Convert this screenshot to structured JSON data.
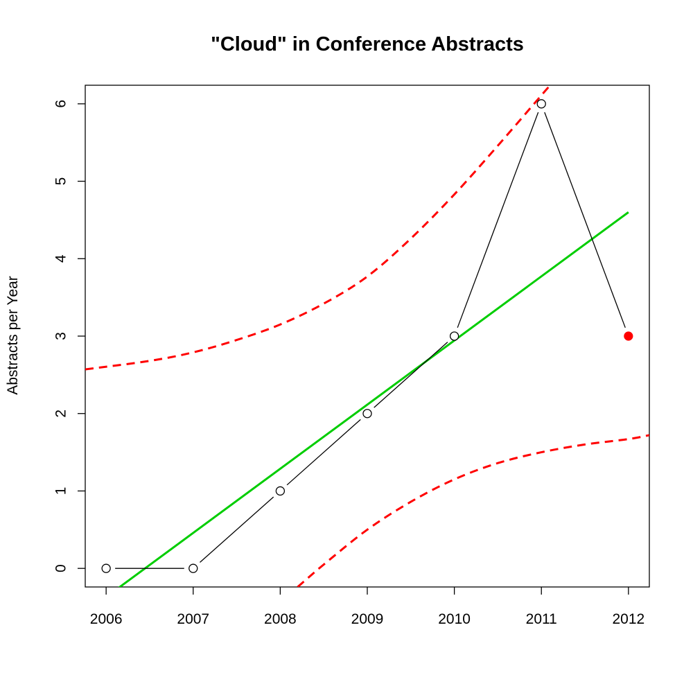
{
  "chart_data": {
    "type": "line",
    "title": "\"Cloud\" in Conference Abstracts",
    "xlabel": "",
    "ylabel": "Abstracts per Year",
    "x_ticks": [
      2006,
      2007,
      2008,
      2009,
      2010,
      2011,
      2012
    ],
    "y_ticks": [
      0,
      1,
      2,
      3,
      4,
      5,
      6
    ],
    "xlim": [
      2005.76,
      2012.24
    ],
    "ylim": [
      -0.24,
      6.24
    ],
    "grid": false,
    "legend": "none",
    "series": [
      {
        "kind": "observed",
        "x": [
          2006,
          2007,
          2008,
          2009,
          2010,
          2011,
          2012
        ],
        "y": [
          0,
          0,
          1,
          2,
          3,
          6,
          3
        ],
        "marker": "open-circle",
        "color": "#000000",
        "highlight_last": {
          "x": 2012,
          "y": 3,
          "color": "#ff0000",
          "marker": "filled-circle"
        }
      },
      {
        "kind": "linear-fit",
        "x": [
          2006,
          2012
        ],
        "y": [
          -0.37,
          4.6
        ],
        "color": "#00cd00",
        "style": "solid"
      },
      {
        "kind": "upper-band",
        "x": [
          2005.76,
          2006.5,
          2007,
          2007.5,
          2008,
          2008.5,
          2009,
          2009.5,
          2010,
          2010.5,
          2011,
          2011.1
        ],
        "y": [
          2.57,
          2.68,
          2.79,
          2.95,
          3.15,
          3.42,
          3.77,
          4.26,
          4.83,
          5.46,
          6.11,
          6.24
        ],
        "color": "#ff0000",
        "style": "dashed"
      },
      {
        "kind": "lower-band",
        "x": [
          2008.2,
          2008.5,
          2009,
          2009.5,
          2010,
          2010.5,
          2011,
          2011.5,
          2012,
          2012.24
        ],
        "y": [
          -0.24,
          0.05,
          0.5,
          0.86,
          1.15,
          1.36,
          1.5,
          1.6,
          1.67,
          1.72
        ],
        "color": "#ff0000",
        "style": "dashed"
      }
    ]
  }
}
